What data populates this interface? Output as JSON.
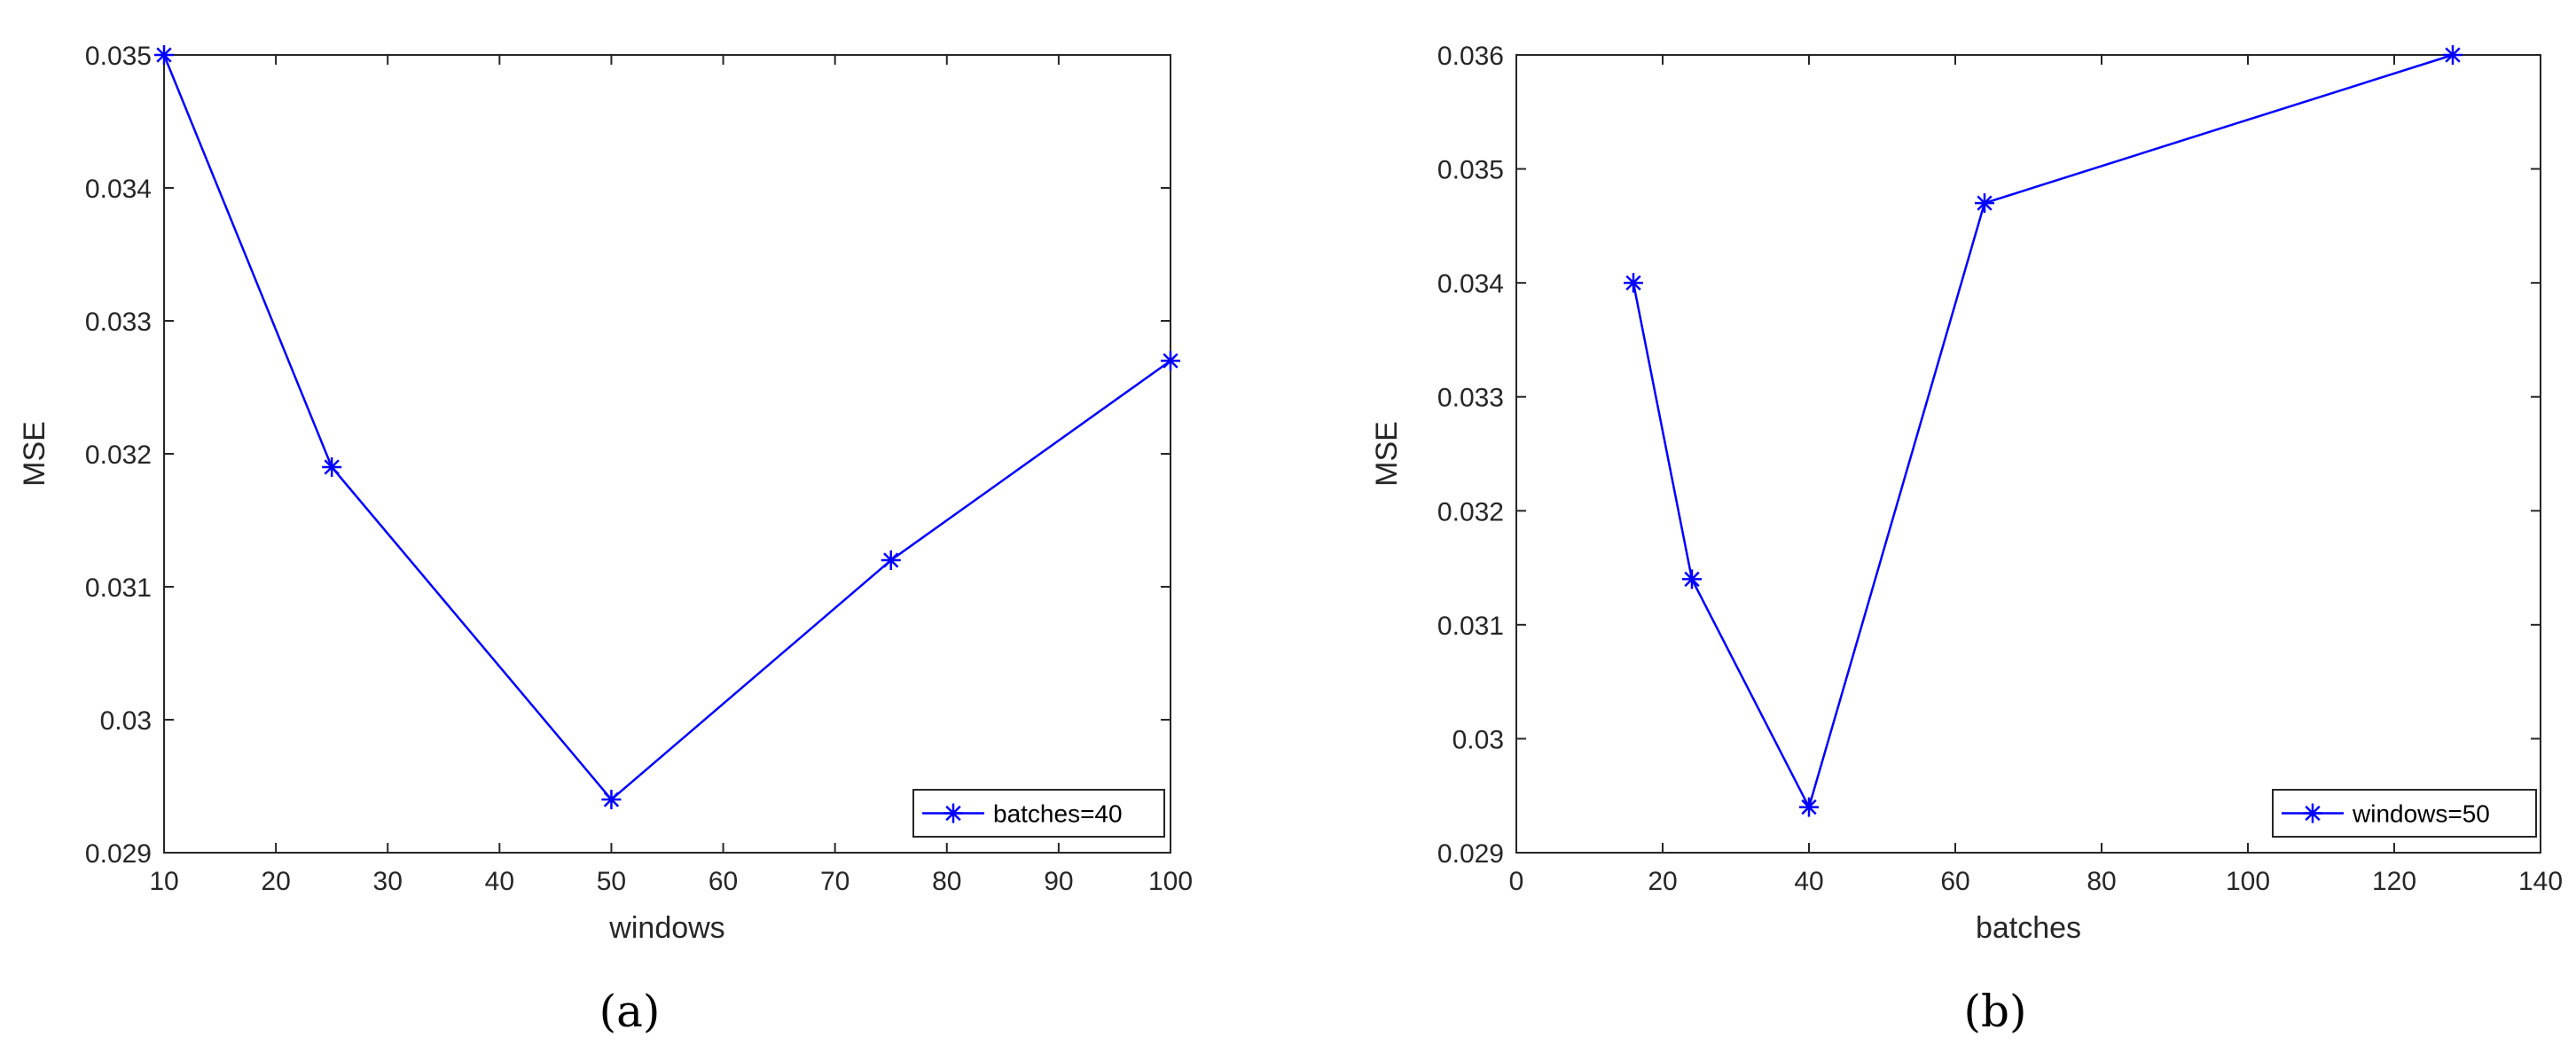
{
  "chart_data": [
    {
      "type": "line",
      "caption": "(a)",
      "xlabel": "windows",
      "ylabel": "MSE",
      "xlim": [
        10,
        100
      ],
      "ylim": [
        0.029,
        0.035
      ],
      "xticks": [
        10,
        20,
        30,
        40,
        50,
        60,
        70,
        80,
        90,
        100
      ],
      "xtick_labels": [
        "10",
        "20",
        "30",
        "40",
        "50",
        "60",
        "70",
        "80",
        "90",
        "100"
      ],
      "yticks": [
        0.029,
        0.03,
        0.031,
        0.032,
        0.033,
        0.034,
        0.035
      ],
      "ytick_labels": [
        "0.029",
        "0.03",
        "0.031",
        "0.032",
        "0.033",
        "0.034",
        "0.035"
      ],
      "grid": false,
      "legend_position": "bottom-right",
      "line_color": "#0000ff",
      "marker": "asterisk",
      "series": [
        {
          "name": "batches=40",
          "x": [
            10,
            25,
            50,
            75,
            100
          ],
          "y": [
            0.035,
            0.0319,
            0.0294,
            0.0312,
            0.0327
          ]
        }
      ]
    },
    {
      "type": "line",
      "caption": "(b)",
      "xlabel": "batches",
      "ylabel": "MSE",
      "xlim": [
        0,
        140
      ],
      "ylim": [
        0.029,
        0.036
      ],
      "xticks": [
        0,
        20,
        40,
        60,
        80,
        100,
        120,
        140
      ],
      "xtick_labels": [
        "0",
        "20",
        "40",
        "60",
        "80",
        "100",
        "120",
        "140"
      ],
      "yticks": [
        0.029,
        0.03,
        0.031,
        0.032,
        0.033,
        0.034,
        0.035,
        0.036
      ],
      "ytick_labels": [
        "0.029",
        "0.03",
        "0.031",
        "0.032",
        "0.033",
        "0.034",
        "0.035",
        "0.036"
      ],
      "grid": false,
      "legend_position": "bottom-right",
      "line_color": "#0000ff",
      "marker": "asterisk",
      "series": [
        {
          "name": "windows=50",
          "x": [
            16,
            24,
            40,
            64,
            128
          ],
          "y": [
            0.034,
            0.0314,
            0.0294,
            0.0347,
            0.036
          ]
        }
      ]
    }
  ]
}
